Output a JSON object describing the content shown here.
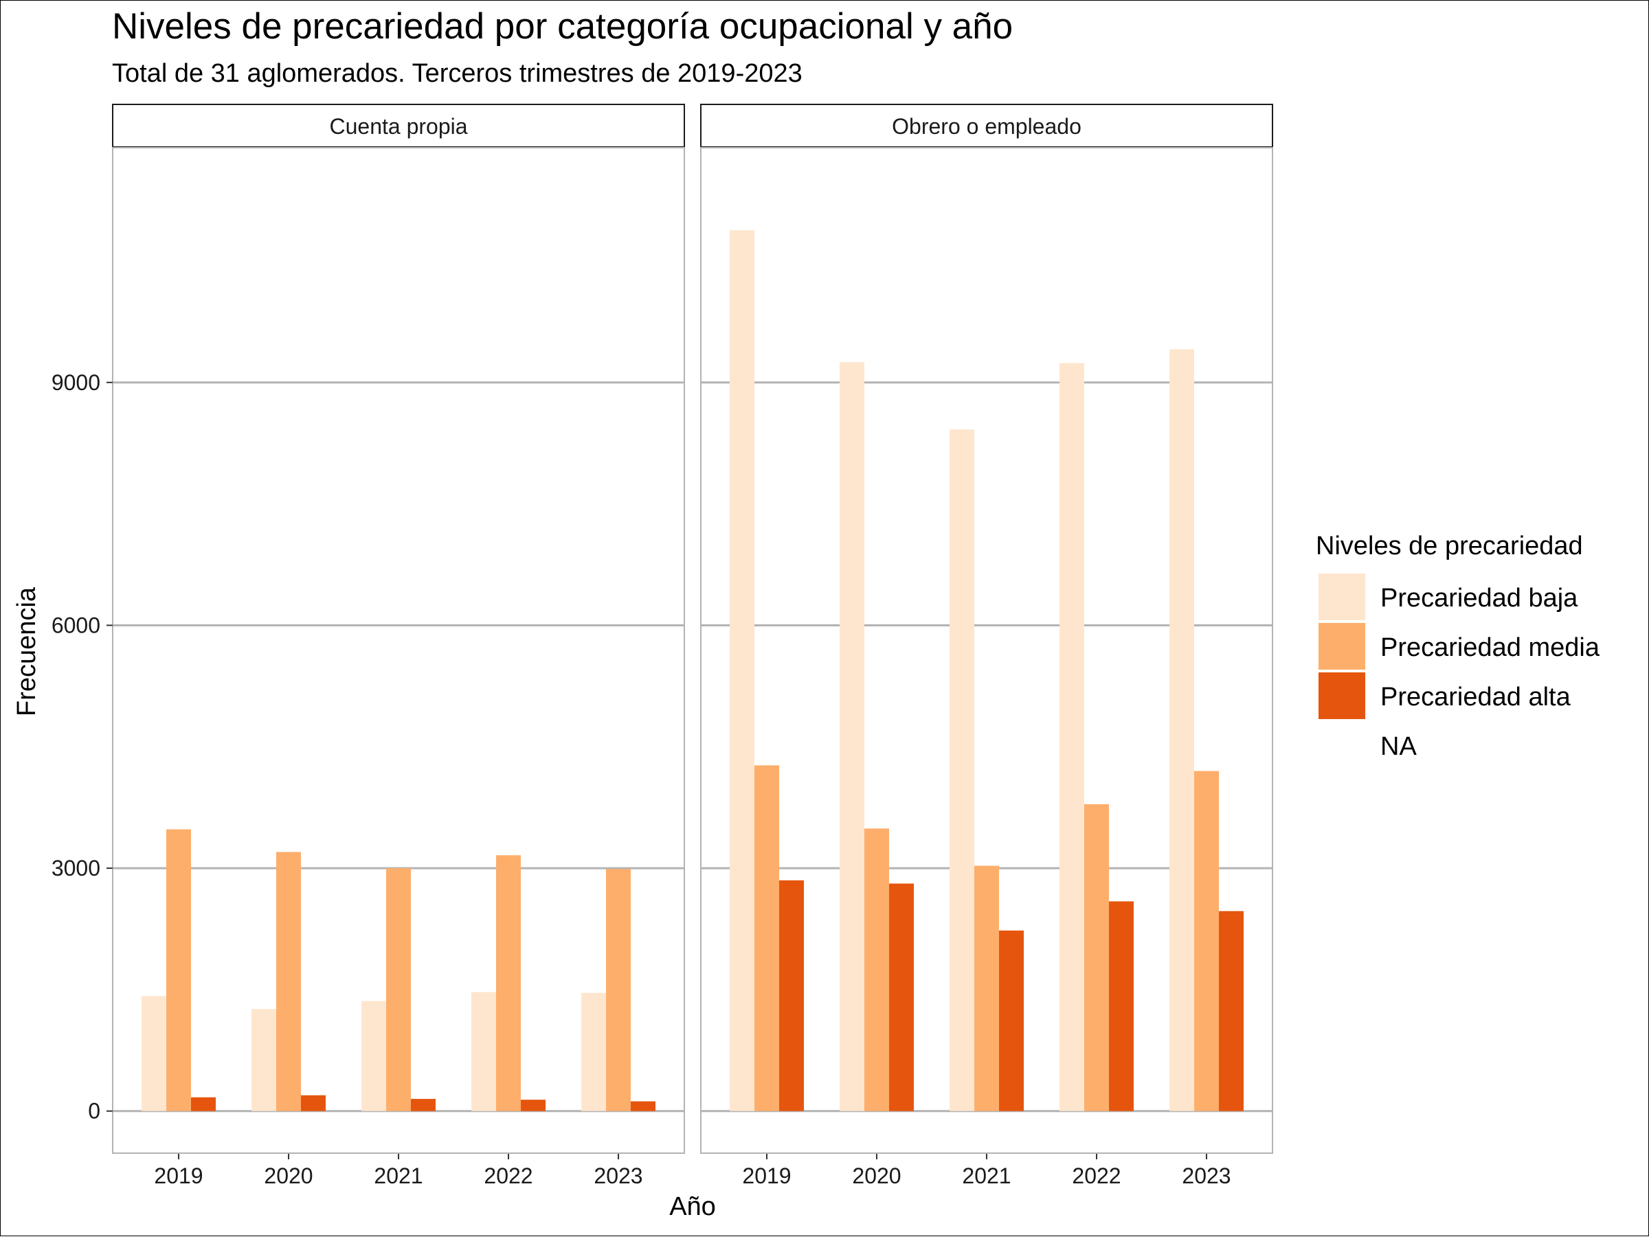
{
  "chart_data": {
    "type": "bar",
    "title": "Niveles de precariedad por categoría ocupacional y año",
    "subtitle": "Total de 31 aglomerados. Terceros trimestres de 2019-2023",
    "xlabel": "Año",
    "ylabel": "Frecuencia",
    "ylim": [
      -520,
      11900
    ],
    "yticks": [
      0,
      3000,
      6000,
      9000
    ],
    "ytick_labels": [
      "0",
      "3000",
      "6000",
      "9000"
    ],
    "grid": true,
    "categories": [
      "2019",
      "2020",
      "2021",
      "2022",
      "2023"
    ],
    "legend": {
      "title": "Niveles de precariedad",
      "position": "right",
      "entries": [
        {
          "label": "Precariedad baja",
          "color": "#fee6ce"
        },
        {
          "label": "Precariedad media",
          "color": "#fdae6b"
        },
        {
          "label": "Precariedad alta",
          "color": "#e6550d"
        },
        {
          "label": "NA",
          "color": null
        }
      ]
    },
    "panels": [
      {
        "strip_label": "Cuenta propia",
        "series": [
          {
            "name": "Precariedad baja",
            "values": [
              1420,
              1260,
              1360,
              1470,
              1460
            ]
          },
          {
            "name": "Precariedad media",
            "values": [
              3480,
              3200,
              3000,
              3160,
              2990
            ]
          },
          {
            "name": "Precariedad alta",
            "values": [
              170,
              195,
              150,
              140,
              120
            ]
          }
        ]
      },
      {
        "strip_label": "Obrero o empleado",
        "series": [
          {
            "name": "Precariedad baja",
            "values": [
              10880,
              9250,
              8420,
              9240,
              9410
            ]
          },
          {
            "name": "Precariedad media",
            "values": [
              4270,
              3490,
              3030,
              3790,
              4200
            ]
          },
          {
            "name": "Precariedad alta",
            "values": [
              2850,
              2810,
              2230,
              2590,
              2470
            ]
          }
        ]
      }
    ]
  }
}
